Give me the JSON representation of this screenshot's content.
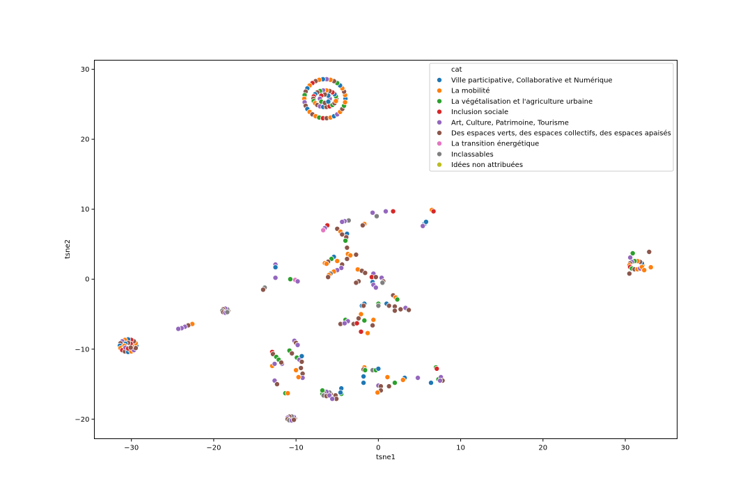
{
  "chart_data": {
    "type": "scatter",
    "xlabel": "tsne1",
    "ylabel": "tsne2",
    "xlim": [
      -34.5,
      36.3
    ],
    "ylim": [
      -22.8,
      31.3
    ],
    "xticks": [
      -30,
      -20,
      -10,
      0,
      10,
      20,
      30
    ],
    "yticks": [
      -20,
      -10,
      0,
      10,
      20,
      30
    ],
    "grid": false,
    "legend": {
      "title": "cat",
      "placement": "top-right",
      "entries": [
        {
          "name": "Ville participative, Collaborative et Numérique",
          "color": "#1f77b4"
        },
        {
          "name": "La mobilité",
          "color": "#ff7f0e"
        },
        {
          "name": "La végétalisation et l'agriculture urbaine",
          "color": "#2ca02c"
        },
        {
          "name": "Inclusion sociale",
          "color": "#d62728"
        },
        {
          "name": "Art, Culture, Patrimoine, Tourisme",
          "color": "#9467bd"
        },
        {
          "name": "Des espaces verts, des espaces collectifs, des espaces apaisés",
          "color": "#8c564b"
        },
        {
          "name": "La transition énergétique",
          "color": "#e377c2"
        },
        {
          "name": "Inclassables",
          "color": "#7f7f7f"
        },
        {
          "name": "Idées non attribuées",
          "color": "#bcbd22"
        }
      ]
    },
    "clusters": [
      {
        "shape": "ring",
        "cx": -6.5,
        "cy": 25.8,
        "rx": 2.5,
        "ry": 2.8,
        "n": 34,
        "cats": [
          0,
          1,
          5,
          1,
          0,
          2,
          5,
          1,
          4,
          0,
          1,
          5,
          3,
          1,
          0,
          5,
          2,
          1,
          4,
          5,
          0,
          1,
          5,
          1,
          2,
          3,
          5,
          1,
          0,
          4,
          1,
          5,
          2,
          1
        ]
      },
      {
        "shape": "ring",
        "cx": -6.5,
        "cy": 25.8,
        "rx": 1.4,
        "ry": 1.2,
        "n": 22,
        "cats": [
          5,
          2,
          0,
          3,
          5,
          1,
          4,
          2,
          5,
          0,
          3,
          5,
          2,
          1,
          5,
          4,
          0,
          5,
          3,
          2,
          5,
          1
        ]
      },
      {
        "shape": "ring",
        "cx": -6.5,
        "cy": 25.8,
        "rx": 0.6,
        "ry": 0.6,
        "n": 8,
        "cats": [
          4,
          0,
          5,
          3,
          4,
          2,
          5,
          0
        ]
      },
      {
        "shape": "ring",
        "cx": -30.4,
        "cy": -9.5,
        "rx": 1.0,
        "ry": 0.9,
        "n": 16,
        "cats": [
          0,
          1,
          5,
          3,
          0,
          1,
          4,
          5,
          0,
          1,
          3,
          5,
          0,
          1,
          4,
          5
        ]
      },
      {
        "shape": "ring",
        "cx": -30.4,
        "cy": -9.5,
        "rx": 0.45,
        "ry": 0.4,
        "n": 8,
        "cats": [
          1,
          3,
          5,
          0,
          1,
          4,
          3,
          5
        ]
      },
      {
        "shape": "ring",
        "cx": 31.3,
        "cy": 2.0,
        "rx": 0.8,
        "ry": 0.6,
        "n": 14,
        "cats": [
          1,
          0,
          5,
          1,
          2,
          4,
          5,
          1,
          3,
          2,
          5,
          1,
          4,
          1
        ]
      },
      {
        "shape": "ring",
        "cx": -18.6,
        "cy": -4.5,
        "rx": 0.35,
        "ry": 0.3,
        "n": 8,
        "cats": [
          5,
          7,
          4,
          5,
          7,
          5,
          4,
          7
        ]
      },
      {
        "shape": "ring",
        "cx": -10.6,
        "cy": -19.9,
        "rx": 0.45,
        "ry": 0.3,
        "n": 9,
        "cats": [
          5,
          4,
          7,
          5,
          4,
          5,
          7,
          4,
          5
        ]
      },
      {
        "shape": "ring",
        "cx": -6.3,
        "cy": -16.4,
        "rx": 0.5,
        "ry": 0.3,
        "n": 8,
        "cats": [
          5,
          7,
          4,
          5,
          2,
          7,
          5,
          4
        ]
      }
    ],
    "points": [
      {
        "x": 32.9,
        "y": 3.9,
        "c": 5
      },
      {
        "x": 33.1,
        "y": 1.7,
        "c": 1
      },
      {
        "x": 30.5,
        "y": 0.8,
        "c": 5
      },
      {
        "x": 30.6,
        "y": 3.1,
        "c": 4
      },
      {
        "x": 30.9,
        "y": 3.7,
        "c": 2
      },
      {
        "x": 32.3,
        "y": 1.3,
        "c": 1
      },
      {
        "x": 6.5,
        "y": 9.9,
        "c": 1
      },
      {
        "x": 6.7,
        "y": 9.7,
        "c": 3
      },
      {
        "x": 5.6,
        "y": 7.9,
        "c": 0
      },
      {
        "x": 5.4,
        "y": 7.6,
        "c": 4
      },
      {
        "x": 5.8,
        "y": 8.2,
        "c": 0
      },
      {
        "x": 0.9,
        "y": 9.7,
        "c": 4
      },
      {
        "x": 1.8,
        "y": 9.7,
        "c": 3
      },
      {
        "x": -0.7,
        "y": 9.5,
        "c": 4
      },
      {
        "x": -0.2,
        "y": 9.0,
        "c": 7
      },
      {
        "x": -1.7,
        "y": 7.9,
        "c": 1
      },
      {
        "x": -1.9,
        "y": 7.7,
        "c": 5
      },
      {
        "x": -3.6,
        "y": 8.4,
        "c": 7
      },
      {
        "x": -4.1,
        "y": 8.3,
        "c": 4
      },
      {
        "x": -4.4,
        "y": 8.2,
        "c": 4
      },
      {
        "x": -6.2,
        "y": 7.7,
        "c": 3
      },
      {
        "x": -6.5,
        "y": 7.3,
        "c": 4
      },
      {
        "x": -6.7,
        "y": 7.0,
        "c": 6
      },
      {
        "x": -5.0,
        "y": 7.2,
        "c": 5
      },
      {
        "x": -4.6,
        "y": 6.8,
        "c": 1
      },
      {
        "x": -4.4,
        "y": 6.4,
        "c": 5
      },
      {
        "x": -3.8,
        "y": 6.5,
        "c": 0
      },
      {
        "x": -3.9,
        "y": 6.0,
        "c": 5
      },
      {
        "x": -4.0,
        "y": 5.5,
        "c": 2
      },
      {
        "x": -3.8,
        "y": 4.5,
        "c": 5
      },
      {
        "x": -3.7,
        "y": 3.6,
        "c": 1
      },
      {
        "x": -3.4,
        "y": 3.4,
        "c": 1
      },
      {
        "x": -2.7,
        "y": 3.5,
        "c": 5
      },
      {
        "x": -3.8,
        "y": 2.9,
        "c": 5
      },
      {
        "x": -5.4,
        "y": 3.2,
        "c": 0
      },
      {
        "x": -5.7,
        "y": 2.9,
        "c": 2
      },
      {
        "x": -6.1,
        "y": 2.5,
        "c": 5
      },
      {
        "x": -6.5,
        "y": 2.3,
        "c": 1
      },
      {
        "x": -6.3,
        "y": 2.2,
        "c": 1
      },
      {
        "x": -5.0,
        "y": 2.6,
        "c": 1
      },
      {
        "x": -4.4,
        "y": 2.1,
        "c": 5
      },
      {
        "x": -4.5,
        "y": 1.6,
        "c": 4
      },
      {
        "x": -5.0,
        "y": 1.3,
        "c": 4
      },
      {
        "x": -5.4,
        "y": 1.1,
        "c": 1
      },
      {
        "x": -5.8,
        "y": 0.8,
        "c": 7
      },
      {
        "x": -6.0,
        "y": 0.6,
        "c": 1
      },
      {
        "x": -6.1,
        "y": 0.3,
        "c": 5
      },
      {
        "x": -2.5,
        "y": 1.4,
        "c": 1
      },
      {
        "x": -2.0,
        "y": 1.2,
        "c": 5
      },
      {
        "x": -1.6,
        "y": 0.9,
        "c": 5
      },
      {
        "x": -0.6,
        "y": 0.8,
        "c": 4
      },
      {
        "x": -0.8,
        "y": 0.3,
        "c": 3
      },
      {
        "x": -0.3,
        "y": 0.3,
        "c": 5
      },
      {
        "x": 0.4,
        "y": 0.2,
        "c": 4
      },
      {
        "x": 0.6,
        "y": -0.3,
        "c": 5
      },
      {
        "x": 0.5,
        "y": -0.5,
        "c": 7
      },
      {
        "x": -0.7,
        "y": -0.4,
        "c": 0
      },
      {
        "x": -0.6,
        "y": -0.8,
        "c": 4
      },
      {
        "x": -0.3,
        "y": -1.2,
        "c": 4
      },
      {
        "x": -2.4,
        "y": -0.3,
        "c": 5
      },
      {
        "x": -2.7,
        "y": -0.5,
        "c": 5
      },
      {
        "x": -12.5,
        "y": 2.1,
        "c": 4
      },
      {
        "x": -12.5,
        "y": 1.7,
        "c": 0
      },
      {
        "x": -12.5,
        "y": 0.2,
        "c": 4
      },
      {
        "x": -10.7,
        "y": 0.0,
        "c": 2
      },
      {
        "x": -10.1,
        "y": -0.1,
        "c": 6
      },
      {
        "x": -9.8,
        "y": -0.3,
        "c": 4
      },
      {
        "x": -13.8,
        "y": -1.2,
        "c": 7
      },
      {
        "x": -14.0,
        "y": -1.5,
        "c": 5
      },
      {
        "x": -22.6,
        "y": -6.4,
        "c": 1
      },
      {
        "x": -23.1,
        "y": -6.6,
        "c": 5
      },
      {
        "x": -23.5,
        "y": -6.8,
        "c": 4
      },
      {
        "x": -23.9,
        "y": -7.0,
        "c": 4
      },
      {
        "x": -24.3,
        "y": -7.1,
        "c": 4
      },
      {
        "x": -2.0,
        "y": -3.8,
        "c": 0
      },
      {
        "x": -1.7,
        "y": -3.5,
        "c": 0
      },
      {
        "x": -1.8,
        "y": -3.8,
        "c": 5
      },
      {
        "x": 0.0,
        "y": -3.5,
        "c": 2
      },
      {
        "x": 0.0,
        "y": -3.8,
        "c": 7
      },
      {
        "x": 1.0,
        "y": -3.5,
        "c": 0
      },
      {
        "x": 1.3,
        "y": -3.8,
        "c": 5
      },
      {
        "x": 1.8,
        "y": -2.3,
        "c": 5
      },
      {
        "x": 2.1,
        "y": -2.6,
        "c": 1
      },
      {
        "x": 2.3,
        "y": -2.9,
        "c": 2
      },
      {
        "x": 2.0,
        "y": -3.9,
        "c": 5
      },
      {
        "x": 2.0,
        "y": -4.5,
        "c": 5
      },
      {
        "x": 2.7,
        "y": -4.3,
        "c": 5
      },
      {
        "x": 3.3,
        "y": -4.1,
        "c": 4
      },
      {
        "x": 3.7,
        "y": -4.4,
        "c": 5
      },
      {
        "x": -2.1,
        "y": -5.0,
        "c": 1
      },
      {
        "x": -2.4,
        "y": -5.6,
        "c": 5
      },
      {
        "x": -4.0,
        "y": -5.8,
        "c": 2
      },
      {
        "x": -3.7,
        "y": -6.0,
        "c": 4
      },
      {
        "x": -4.6,
        "y": -6.4,
        "c": 5
      },
      {
        "x": -4.1,
        "y": -6.3,
        "c": 4
      },
      {
        "x": -3.0,
        "y": -6.4,
        "c": 5
      },
      {
        "x": -2.6,
        "y": -6.3,
        "c": 3
      },
      {
        "x": -1.7,
        "y": -5.9,
        "c": 2
      },
      {
        "x": -0.6,
        "y": -5.8,
        "c": 1
      },
      {
        "x": -0.7,
        "y": -6.6,
        "c": 5
      },
      {
        "x": -2.1,
        "y": -7.5,
        "c": 3
      },
      {
        "x": -1.3,
        "y": -7.7,
        "c": 1
      },
      {
        "x": -12.9,
        "y": -10.4,
        "c": 3
      },
      {
        "x": -12.8,
        "y": -10.7,
        "c": 5
      },
      {
        "x": -12.4,
        "y": -11.1,
        "c": 2
      },
      {
        "x": -12.1,
        "y": -11.5,
        "c": 2
      },
      {
        "x": -11.7,
        "y": -12.1,
        "c": 4
      },
      {
        "x": -11.8,
        "y": -11.9,
        "c": 5
      },
      {
        "x": -12.9,
        "y": -12.4,
        "c": 1
      },
      {
        "x": -12.6,
        "y": -12.1,
        "c": 4
      },
      {
        "x": -10.8,
        "y": -10.2,
        "c": 2
      },
      {
        "x": -10.5,
        "y": -10.6,
        "c": 5
      },
      {
        "x": -10.2,
        "y": -8.8,
        "c": 4
      },
      {
        "x": -10.0,
        "y": -9.1,
        "c": 5
      },
      {
        "x": -9.8,
        "y": -9.4,
        "c": 4
      },
      {
        "x": -9.9,
        "y": -11.2,
        "c": 2
      },
      {
        "x": -9.6,
        "y": -11.5,
        "c": 4
      },
      {
        "x": -9.3,
        "y": -11.0,
        "c": 0
      },
      {
        "x": -9.3,
        "y": -11.8,
        "c": 5
      },
      {
        "x": -10.0,
        "y": -13.0,
        "c": 1
      },
      {
        "x": -9.4,
        "y": -12.7,
        "c": 5
      },
      {
        "x": -9.2,
        "y": -13.5,
        "c": 5
      },
      {
        "x": -9.2,
        "y": -14.1,
        "c": 4
      },
      {
        "x": -9.7,
        "y": -14.0,
        "c": 1
      },
      {
        "x": -12.6,
        "y": -14.5,
        "c": 4
      },
      {
        "x": -12.3,
        "y": -15.0,
        "c": 5
      },
      {
        "x": -11.3,
        "y": -16.3,
        "c": 2
      },
      {
        "x": -11.0,
        "y": -16.3,
        "c": 1
      },
      {
        "x": -5.2,
        "y": -16.6,
        "c": 5
      },
      {
        "x": -5.1,
        "y": -17.1,
        "c": 5
      },
      {
        "x": -5.6,
        "y": -17.1,
        "c": 4
      },
      {
        "x": -4.5,
        "y": -16.4,
        "c": 2
      },
      {
        "x": -4.5,
        "y": -15.6,
        "c": 0
      },
      {
        "x": -4.6,
        "y": -16.2,
        "c": 0
      },
      {
        "x": -6.8,
        "y": -15.9,
        "c": 2
      },
      {
        "x": -1.7,
        "y": -12.6,
        "c": 1
      },
      {
        "x": -1.8,
        "y": -12.9,
        "c": 5
      },
      {
        "x": -1.6,
        "y": -13.0,
        "c": 2
      },
      {
        "x": -1.8,
        "y": -13.9,
        "c": 0
      },
      {
        "x": -1.8,
        "y": -14.8,
        "c": 0
      },
      {
        "x": -0.7,
        "y": -13.0,
        "c": 7
      },
      {
        "x": -0.3,
        "y": -13.0,
        "c": 2
      },
      {
        "x": 0.0,
        "y": -12.8,
        "c": 0
      },
      {
        "x": 1.1,
        "y": -14.0,
        "c": 1
      },
      {
        "x": 1.3,
        "y": -15.3,
        "c": 5
      },
      {
        "x": 2.0,
        "y": -14.8,
        "c": 2
      },
      {
        "x": 0.0,
        "y": -15.2,
        "c": 4
      },
      {
        "x": 0.3,
        "y": -15.3,
        "c": 5
      },
      {
        "x": 0.3,
        "y": -15.9,
        "c": 5
      },
      {
        "x": -0.1,
        "y": -16.2,
        "c": 1
      },
      {
        "x": 3.2,
        "y": -14.1,
        "c": 0
      },
      {
        "x": 3.0,
        "y": -14.4,
        "c": 1
      },
      {
        "x": 4.8,
        "y": -14.1,
        "c": 4
      },
      {
        "x": 6.4,
        "y": -14.8,
        "c": 0
      },
      {
        "x": 7.0,
        "y": -12.6,
        "c": 2
      },
      {
        "x": 7.1,
        "y": -12.8,
        "c": 3
      },
      {
        "x": 7.3,
        "y": -14.3,
        "c": 2
      },
      {
        "x": 7.6,
        "y": -14.0,
        "c": 4
      },
      {
        "x": 7.8,
        "y": -14.5,
        "c": 5
      },
      {
        "x": 7.5,
        "y": -14.5,
        "c": 4
      }
    ]
  }
}
